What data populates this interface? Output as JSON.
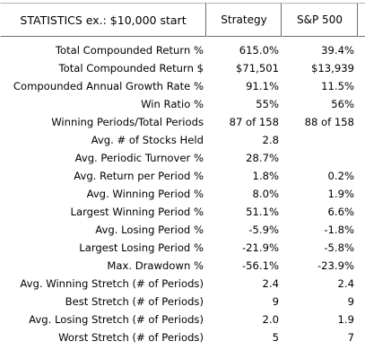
{
  "header": {
    "statistics_label": "STATISTICS  ex.: $10,000 start",
    "strategy_label": "Strategy",
    "sp500_label": "S&P 500"
  },
  "rows": [
    {
      "label": "Total Compounded Return %",
      "strategy": "615.0%",
      "sp500": "39.4%"
    },
    {
      "label": "Total Compounded Return $",
      "strategy": "$71,501",
      "sp500": "$13,939"
    },
    {
      "label": "Compounded Annual Growth Rate %",
      "strategy": "91.1%",
      "sp500": "11.5%"
    },
    {
      "label": "Win Ratio %",
      "strategy": "55%",
      "sp500": "56%"
    },
    {
      "label": "Winning Periods/Total Periods",
      "strategy": "87 of 158",
      "sp500": "88 of 158"
    },
    {
      "label": "Avg. # of Stocks Held",
      "strategy": "2.8",
      "sp500": ""
    },
    {
      "label": "Avg. Periodic Turnover %",
      "strategy": "28.7%",
      "sp500": ""
    },
    {
      "label": "Avg. Return per Period %",
      "strategy": "1.8%",
      "sp500": "0.2%"
    },
    {
      "label": "Avg. Winning Period %",
      "strategy": "8.0%",
      "sp500": "1.9%"
    },
    {
      "label": "Largest Winning Period %",
      "strategy": "51.1%",
      "sp500": "6.6%"
    },
    {
      "label": "Avg. Losing Period %",
      "strategy": "-5.9%",
      "sp500": "-1.8%"
    },
    {
      "label": "Largest Losing Period %",
      "strategy": "-21.9%",
      "sp500": "-5.8%"
    },
    {
      "label": "Max. Drawdown %",
      "strategy": "-56.1%",
      "sp500": "-23.9%"
    },
    {
      "label": "Avg. Winning Stretch (# of Periods)",
      "strategy": "2.4",
      "sp500": "2.4"
    },
    {
      "label": "Best Stretch (# of Periods)",
      "strategy": "9",
      "sp500": "9"
    },
    {
      "label": "Avg. Losing Stretch (# of Periods)",
      "strategy": "2.0",
      "sp500": "1.9"
    },
    {
      "label": "Worst Stretch (# of Periods)",
      "strategy": "5",
      "sp500": "7"
    }
  ]
}
